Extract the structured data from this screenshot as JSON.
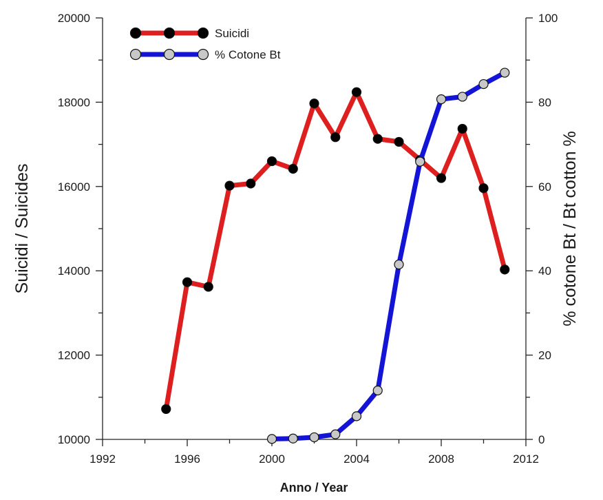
{
  "chart_data": {
    "type": "line",
    "xlabel": "Anno / Year",
    "ylabel_left": "Suicidi / Suicides",
    "ylabel_right": "% cotone Bt / Bt cotton %",
    "xlim": [
      1992,
      2012
    ],
    "ylim_left": [
      10000,
      20000
    ],
    "ylim_right": [
      0,
      100
    ],
    "x_ticks": [
      "1992",
      "1996",
      "2000",
      "2004",
      "2008",
      "2012"
    ],
    "y_left_ticks": [
      "10000",
      "12000",
      "14000",
      "16000",
      "18000",
      "20000"
    ],
    "y_right_ticks": [
      "0",
      "20",
      "40",
      "60",
      "80",
      "100"
    ],
    "grid": false,
    "legend_position": "top-left",
    "series": [
      {
        "name": "Suicidi",
        "axis": "left",
        "color": "#dd1f1f",
        "marker_color": "#000000",
        "x": [
          1995,
          1996,
          1997,
          1998,
          1999,
          2000,
          2001,
          2002,
          2003,
          2004,
          2005,
          2006,
          2007,
          2008,
          2009,
          2010,
          2011
        ],
        "values": [
          10720,
          13730,
          13620,
          16020,
          16070,
          16600,
          16420,
          17970,
          17170,
          18240,
          17130,
          17060,
          16630,
          16200,
          17370,
          15960,
          14030
        ]
      },
      {
        "name": "% Cotone Bt",
        "axis": "right",
        "color": "#1414d6",
        "marker_color": "#c8c8c8",
        "x": [
          2000,
          2001,
          2002,
          2003,
          2004,
          2005,
          2006,
          2007,
          2008,
          2009,
          2010,
          2011
        ],
        "values": [
          0.1,
          0.2,
          0.5,
          1.2,
          5.5,
          11.6,
          41.5,
          65.9,
          80.7,
          81.3,
          84.3,
          87.0
        ]
      }
    ]
  }
}
